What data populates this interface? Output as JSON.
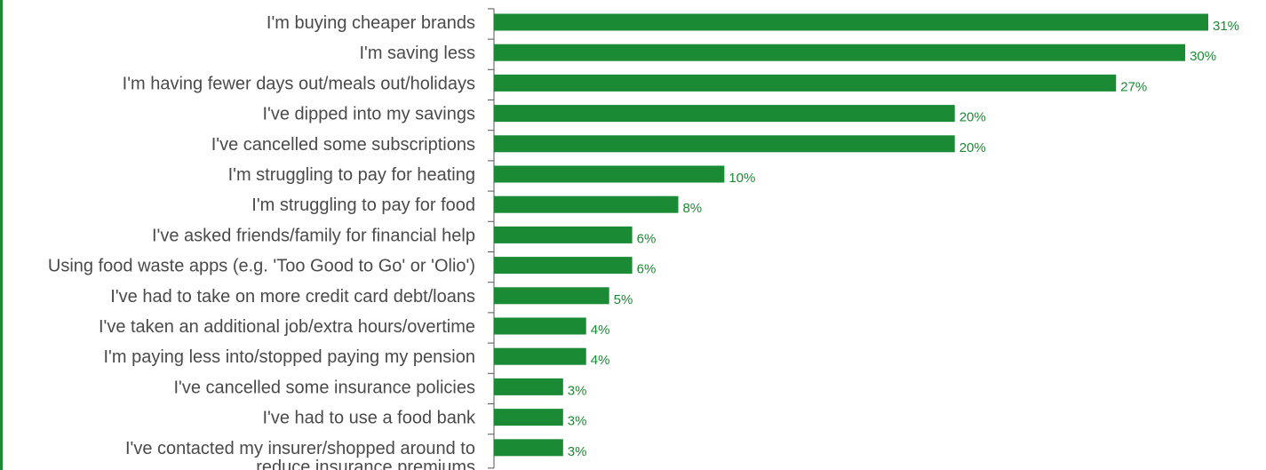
{
  "chart_data": {
    "type": "bar",
    "orientation": "horizontal",
    "title": "",
    "xlabel": "",
    "ylabel": "",
    "xlim": [
      0,
      31
    ],
    "grid": false,
    "legend": "none",
    "bar_color": "#1b8a34",
    "label_color": "#1b8a34",
    "text_color": "#4a4a4a",
    "value_suffix": "%",
    "categories": [
      "I'm buying cheaper brands",
      "I'm saving less",
      "I'm having fewer days out/meals out/holidays",
      "I've dipped into my savings",
      "I've cancelled some subscriptions",
      "I'm struggling to pay for heating",
      "I'm struggling to pay for food",
      "I've asked friends/family for financial help",
      "Using food waste apps (e.g. 'Too Good to Go' or 'Olio')",
      "I've had to take on more credit card debt/loans",
      "I've taken an additional job/extra hours/overtime",
      "I'm paying less into/stopped paying my pension",
      "I've cancelled some insurance policies",
      "I've had to use a food bank",
      [
        "I've contacted my insurer/shopped around to",
        "reduce insurance premiums"
      ]
    ],
    "values": [
      31,
      30,
      27,
      20,
      20,
      10,
      8,
      6,
      6,
      5,
      4,
      4,
      3,
      3,
      3
    ]
  }
}
